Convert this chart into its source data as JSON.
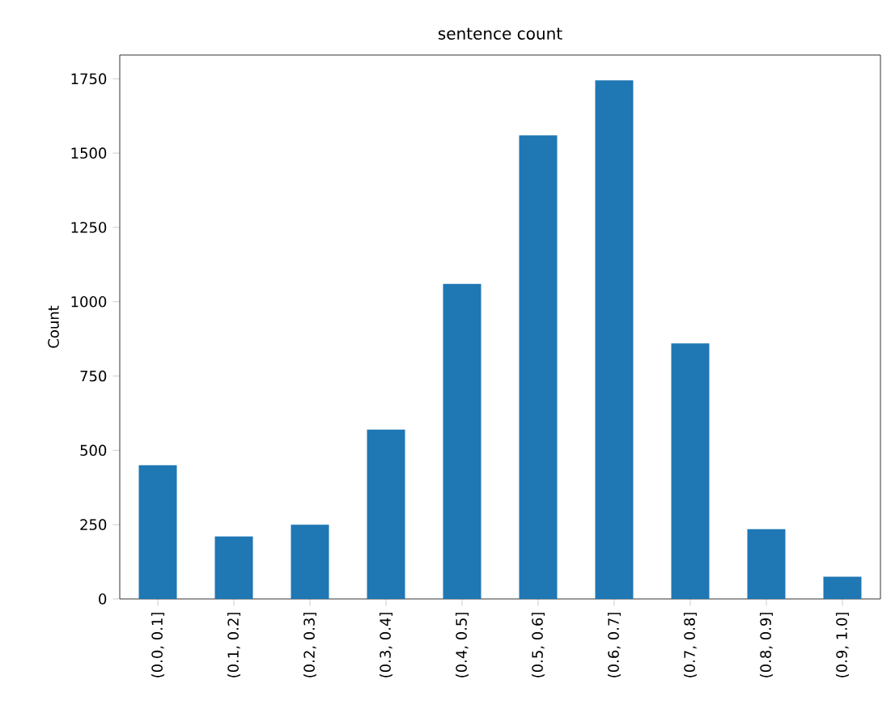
{
  "chart_data": {
    "type": "bar",
    "title": "sentence count",
    "ylabel": "Count",
    "categories": [
      "(0.0, 0.1]",
      "(0.1, 0.2]",
      "(0.2, 0.3]",
      "(0.3, 0.4]",
      "(0.4, 0.5]",
      "(0.5, 0.6]",
      "(0.6, 0.7]",
      "(0.7, 0.8]",
      "(0.8, 0.9]",
      "(0.9, 1.0]"
    ],
    "values": [
      450,
      210,
      250,
      570,
      1060,
      1560,
      1745,
      860,
      235,
      75
    ],
    "color": "#1f77b4",
    "ylim": [
      0,
      1830
    ],
    "yticks": [
      0,
      250,
      500,
      750,
      1000,
      1250,
      1500,
      1750
    ],
    "grid": false
  }
}
